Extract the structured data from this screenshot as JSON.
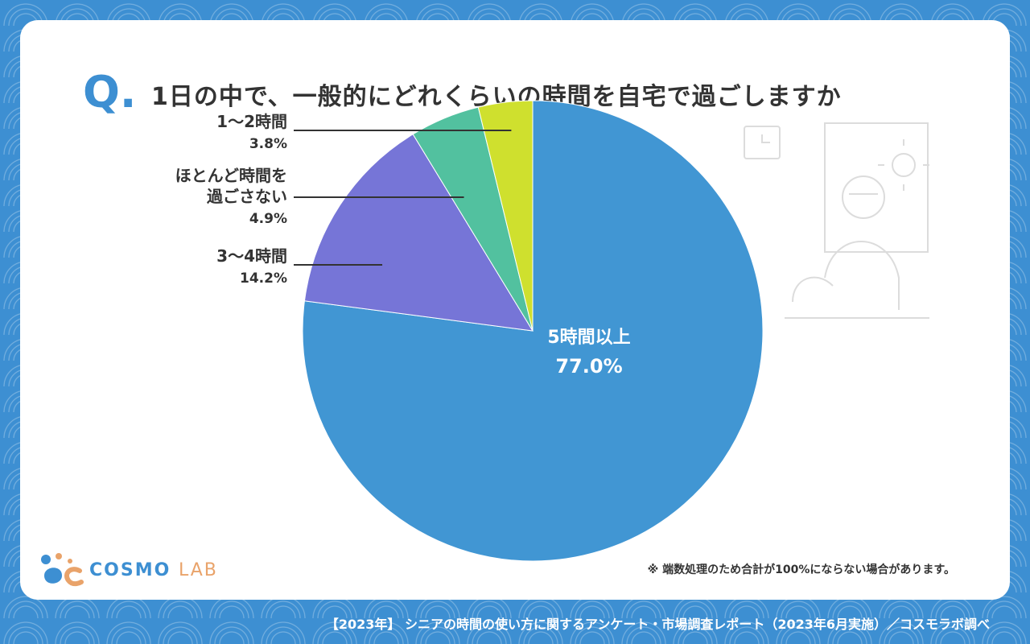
{
  "question": {
    "mark": "Q.",
    "title": "1日の中で、一般的にどれくらいの時間を自宅で過ごしますか"
  },
  "chart_data": {
    "type": "pie",
    "title": "1日の中で、一般的にどれくらいの時間を自宅で過ごしますか",
    "slices": [
      {
        "label": "5時間以上",
        "value": 77.0,
        "display": "77.0%",
        "color": "#4196d3"
      },
      {
        "label": "3〜4時間",
        "value": 14.2,
        "display": "14.2%",
        "color": "#7675d7"
      },
      {
        "label": "ほとんど時間を過ごさない",
        "label_lines": [
          "ほとんど時間を",
          "過ごさない"
        ],
        "value": 4.9,
        "display": "4.9%",
        "color": "#52c19f"
      },
      {
        "label": "1〜2時間",
        "value": 3.8,
        "display": "3.8%",
        "color": "#cfe02e"
      }
    ]
  },
  "logo": {
    "part1": "COSMO",
    "part2": "LAB"
  },
  "note": "※ 端数処理のため合計が100%にならない場合があります。",
  "footer": "【2023年】 シニアの時間の使い方に関するアンケート・市場調査レポート（2023年6月実施）／コスモラボ調べ"
}
